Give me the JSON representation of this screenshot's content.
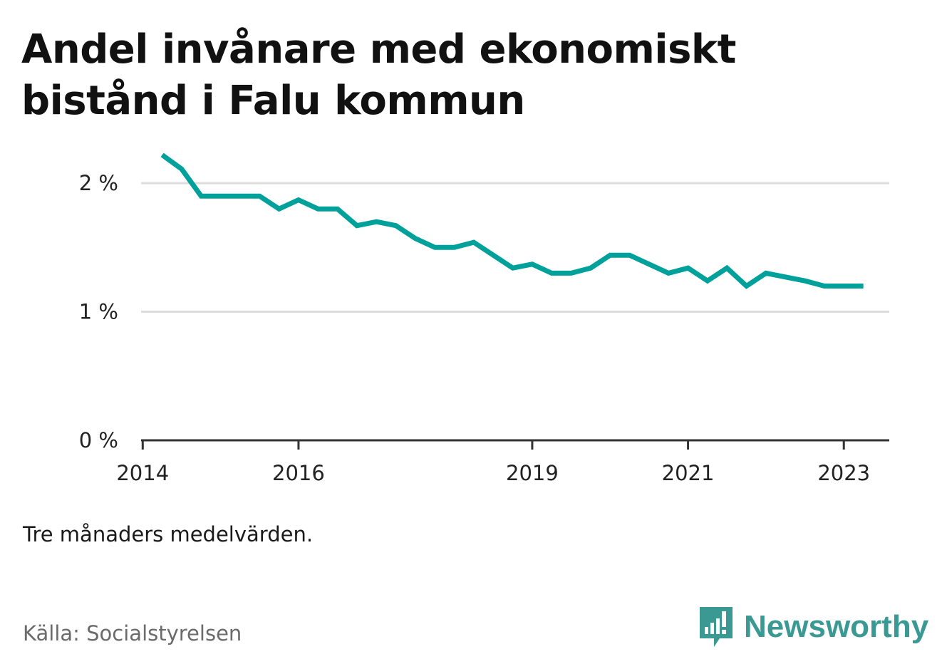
{
  "title": "Andel invånare med ekonomiskt bistånd i Falu kommun",
  "note": "Tre månaders medelvärden.",
  "source": "Källa: Socialstyrelsen",
  "brand": {
    "name": "Newsworthy",
    "icon": "newsworthy-logo-icon",
    "color": "#3a9a93"
  },
  "colors": {
    "line": "#00a19a",
    "grid": "#dddddd",
    "axis": "#333333"
  },
  "chart_data": {
    "type": "line",
    "title": "Andel invånare med ekonomiskt bistånd i Falu kommun",
    "xlabel": "",
    "ylabel": "",
    "grid": true,
    "ylim": [
      0,
      2.25
    ],
    "xlim": [
      "2014-01",
      "2023-07"
    ],
    "y_ticks": [
      {
        "value": 0,
        "label": "0 %"
      },
      {
        "value": 1,
        "label": "1 %"
      },
      {
        "value": 2,
        "label": "2 %"
      }
    ],
    "x_ticks": [
      {
        "value": "2014-01",
        "label": "2014"
      },
      {
        "value": "2016-01",
        "label": "2016"
      },
      {
        "value": "2019-01",
        "label": "2019"
      },
      {
        "value": "2021-01",
        "label": "2021"
      },
      {
        "value": "2023-01",
        "label": "2023"
      }
    ],
    "series": [
      {
        "x": [
          "2014-04",
          "2014-07",
          "2014-10",
          "2015-01",
          "2015-04",
          "2015-07",
          "2015-10",
          "2016-01",
          "2016-04",
          "2016-07",
          "2016-10",
          "2017-01",
          "2017-04",
          "2017-07",
          "2017-10",
          "2018-01",
          "2018-04",
          "2018-07",
          "2018-10",
          "2019-01",
          "2019-04",
          "2019-07",
          "2019-10",
          "2020-01",
          "2020-04",
          "2020-07",
          "2020-10",
          "2021-01",
          "2021-04",
          "2021-07",
          "2021-10",
          "2022-01",
          "2022-04",
          "2022-07",
          "2022-10",
          "2023-01",
          "2023-04"
        ],
        "values": [
          2.22,
          2.11,
          1.9,
          1.9,
          1.9,
          1.9,
          1.8,
          1.87,
          1.8,
          1.8,
          1.67,
          1.7,
          1.67,
          1.57,
          1.5,
          1.5,
          1.54,
          1.44,
          1.34,
          1.37,
          1.3,
          1.3,
          1.34,
          1.44,
          1.44,
          1.37,
          1.3,
          1.34,
          1.24,
          1.34,
          1.2,
          1.3,
          1.27,
          1.24,
          1.2,
          1.2,
          1.2
        ]
      }
    ]
  }
}
